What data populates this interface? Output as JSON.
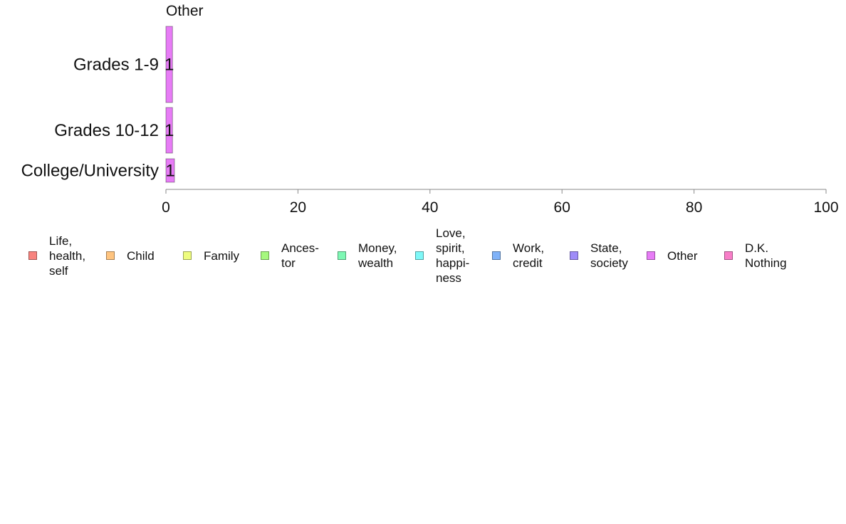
{
  "chart_data": {
    "type": "bar",
    "orientation": "horizontal",
    "stacked": true,
    "title": "Other",
    "categories": [
      "Grades 1-9",
      "Grades 10-12",
      "College/University"
    ],
    "series": [
      {
        "name": "Other",
        "color": "#e77cf6",
        "values": [
          1,
          1,
          1
        ],
        "labels": [
          "1",
          "1",
          "1"
        ]
      }
    ],
    "xlim": [
      0,
      100
    ],
    "xticks": [
      "0",
      "20",
      "40",
      "60",
      "80",
      "100"
    ],
    "grid": false,
    "legend_position": "bottom",
    "legend": [
      {
        "label": "Life,\nhealth,\nself",
        "color": "#f8837e"
      },
      {
        "label": "Child",
        "color": "#ffc47f"
      },
      {
        "label": "Family",
        "color": "#eefc7e"
      },
      {
        "label": "Ances-\ntor",
        "color": "#a6f87e"
      },
      {
        "label": "Money,\nwealth",
        "color": "#7ef8b4"
      },
      {
        "label": "Love,\nspirit,\nhappi-\nness",
        "color": "#7ef8f8"
      },
      {
        "label": "Work,\ncredit",
        "color": "#7fb2f8"
      },
      {
        "label": "State,\nsociety",
        "color": "#9f8cf8"
      },
      {
        "label": "Other",
        "color": "#e77cf6"
      },
      {
        "label": "D.K.\nNothing",
        "color": "#f87ec8"
      }
    ]
  }
}
